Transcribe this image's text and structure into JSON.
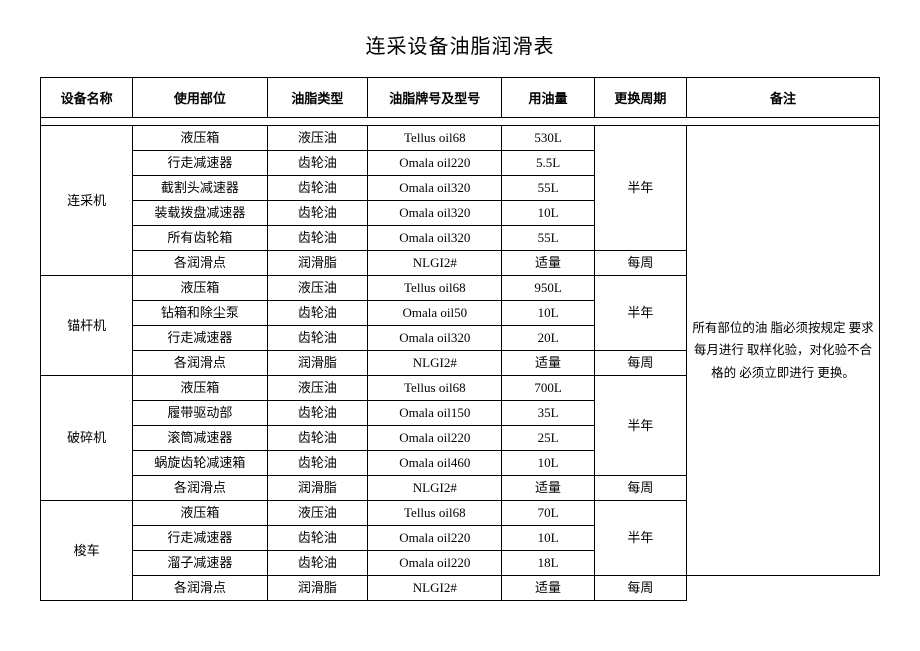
{
  "title": "连采设备油脂润滑表",
  "columns": {
    "equipment": "设备名称",
    "part": "使用部位",
    "oil_type": "油脂类型",
    "oil_model": "油脂牌号及型号",
    "quantity": "用油量",
    "cycle": "更换周期",
    "note": "备注"
  },
  "note_text": "所有部位的油 脂必须按规定 要求每月进行 取样化验，对化验不合格的 必须立即进行 更换。",
  "groups": [
    {
      "equipment": "连采机",
      "sub1_cycle": "半年",
      "rows1": [
        {
          "part": "液压箱",
          "oil_type": "液压油",
          "oil_model": "Tellus oil68",
          "qty": "530L"
        },
        {
          "part": "行走减速器",
          "oil_type": "齿轮油",
          "oil_model": "Omala oil220",
          "qty": "5.5L"
        },
        {
          "part": "截割头减速器",
          "oil_type": "齿轮油",
          "oil_model": "Omala oil320",
          "qty": "55L"
        },
        {
          "part": "装载拨盘减速器",
          "oil_type": "齿轮油",
          "oil_model": "Omala oil320",
          "qty": "10L"
        },
        {
          "part": "所有齿轮箱",
          "oil_type": "齿轮油",
          "oil_model": "Omala oil320",
          "qty": "55L"
        }
      ],
      "row2": {
        "part": "各润滑点",
        "oil_type": "润滑脂",
        "oil_model": "NLGI2#",
        "qty": "适量",
        "cycle": "每周"
      }
    },
    {
      "equipment": "锚杆机",
      "sub1_cycle": "半年",
      "rows1": [
        {
          "part": "液压箱",
          "oil_type": "液压油",
          "oil_model": "Tellus oil68",
          "qty": "950L"
        },
        {
          "part": "钻箱和除尘泵",
          "oil_type": "齿轮油",
          "oil_model": "Omala oil50",
          "qty": "10L"
        },
        {
          "part": "行走减速器",
          "oil_type": "齿轮油",
          "oil_model": "Omala oil320",
          "qty": "20L"
        }
      ],
      "row2": {
        "part": "各润滑点",
        "oil_type": "润滑脂",
        "oil_model": "NLGI2#",
        "qty": "适量",
        "cycle": "每周"
      }
    },
    {
      "equipment": "破碎机",
      "sub1_cycle": "半年",
      "rows1": [
        {
          "part": "液压箱",
          "oil_type": "液压油",
          "oil_model": "Tellus oil68",
          "qty": "700L"
        },
        {
          "part": "履带驱动部",
          "oil_type": "齿轮油",
          "oil_model": "Omala oil150",
          "qty": "35L"
        },
        {
          "part": "滚筒减速器",
          "oil_type": "齿轮油",
          "oil_model": "Omala oil220",
          "qty": "25L"
        },
        {
          "part": "蜗旋齿轮减速箱",
          "oil_type": "齿轮油",
          "oil_model": "Omala oil460",
          "qty": "10L"
        }
      ],
      "row2": {
        "part": "各润滑点",
        "oil_type": "润滑脂",
        "oil_model": "NLGI2#",
        "qty": "适量",
        "cycle": "每周"
      }
    },
    {
      "equipment": "梭车",
      "sub1_cycle": "半年",
      "rows1": [
        {
          "part": "液压箱",
          "oil_type": "液压油",
          "oil_model": "Tellus oil68",
          "qty": "70L"
        },
        {
          "part": "行走减速器",
          "oil_type": "齿轮油",
          "oil_model": "Omala oil220",
          "qty": "10L"
        },
        {
          "part": "溜子减速器",
          "oil_type": "齿轮油",
          "oil_model": "Omala oil220",
          "qty": "18L"
        }
      ],
      "row2": {
        "part": "各润滑点",
        "oil_type": "润滑脂",
        "oil_model": "NLGI2#",
        "qty": "适量",
        "cycle": "每周"
      }
    }
  ]
}
